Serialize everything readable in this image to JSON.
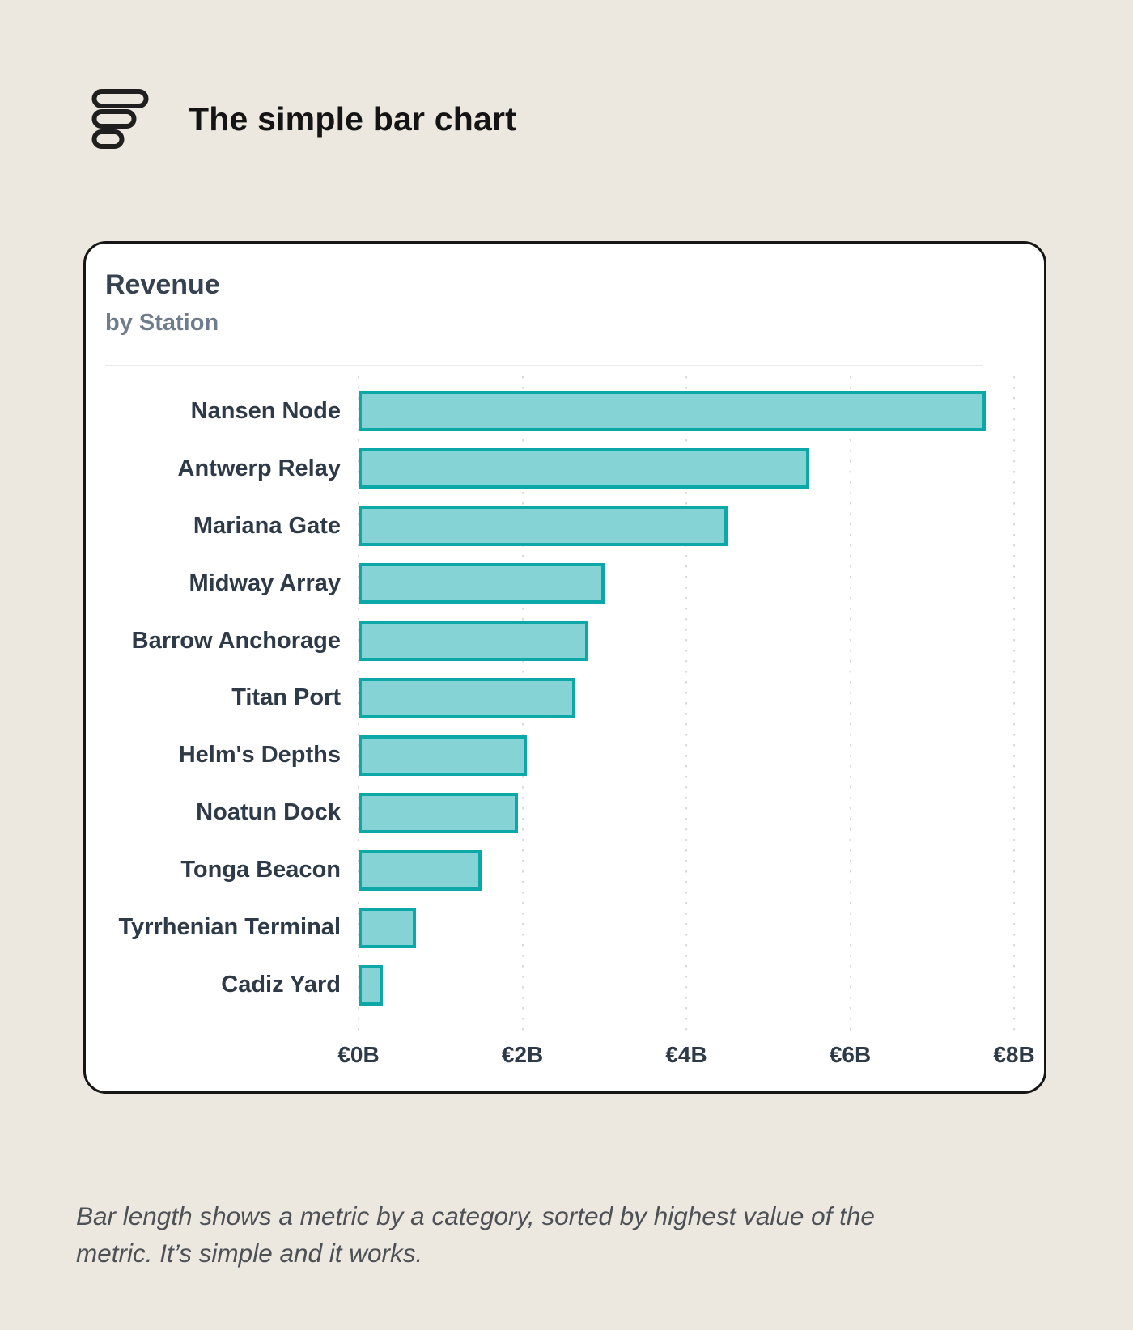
{
  "page": {
    "background": "#ECE8E0"
  },
  "header": {
    "title": "The simple bar chart",
    "icon": "bar-chart-icon"
  },
  "card": {
    "title": "Revenue",
    "subtitle": "by Station"
  },
  "chart_data": {
    "type": "bar",
    "orientation": "horizontal",
    "title": "Revenue",
    "subtitle": "by Station",
    "categories": [
      "Nansen Node",
      "Antwerp Relay",
      "Mariana Gate",
      "Midway Array",
      "Barrow Anchorage",
      "Titan Port",
      "Helm's Depths",
      "Noatun Dock",
      "Tonga Beacon",
      "Tyrrhenian Terminal",
      "Cadiz Yard"
    ],
    "values": [
      7.65,
      5.5,
      4.5,
      3.0,
      2.8,
      2.65,
      2.05,
      1.95,
      1.5,
      0.7,
      0.3
    ],
    "unit": "billions EUR",
    "xlabel": "",
    "ylabel": "",
    "xlim": [
      0,
      8
    ],
    "x_ticks": [
      "€0B",
      "€2B",
      "€4B",
      "€6B",
      "€8B"
    ],
    "x_tick_values": [
      0,
      2,
      4,
      6,
      8
    ],
    "sort": "descending by value",
    "grid": "vertical dotted gridlines at ticks",
    "legend": "none",
    "bar_fill": "#85D3D4",
    "bar_border": "#0CA8A8"
  },
  "caption": {
    "lines": [
      "Bar length shows a metric by a category, sorted by highest value of the",
      "metric. It’s simple and it works."
    ]
  }
}
